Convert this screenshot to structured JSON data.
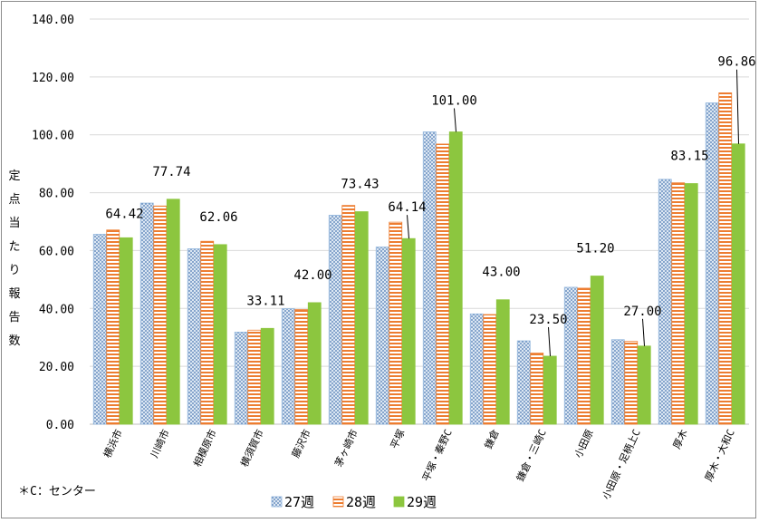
{
  "chart_data": {
    "type": "bar",
    "ylabel": "定点当たり報告数",
    "ylim": [
      0,
      140
    ],
    "yticks": [
      "0.00",
      "20.00",
      "40.00",
      "60.00",
      "80.00",
      "100.00",
      "120.00",
      "140.00"
    ],
    "grid": true,
    "legend": "bottom-center",
    "note": "＊C：センター",
    "categories": [
      "横浜市",
      "川崎市",
      "相模原市",
      "横須賀市",
      "藤沢市",
      "茅ヶ崎市",
      "平塚",
      "平塚・秦野C",
      "鎌倉",
      "鎌倉・三崎C",
      "小田原",
      "小田原・足柄上C",
      "厚木",
      "厚木・大和C"
    ],
    "series": [
      {
        "name": "27週",
        "color": "#8fb4dc",
        "pattern": "dots",
        "values": [
          65.6,
          76.4,
          60.6,
          31.8,
          39.9,
          72.2,
          61.2,
          101.0,
          38.1,
          28.8,
          47.3,
          29.2,
          84.6,
          111.0
        ]
      },
      {
        "name": "28週",
        "color": "#ed7d31",
        "pattern": "hstripes",
        "values": [
          67.1,
          75.4,
          63.2,
          32.5,
          39.6,
          75.6,
          69.8,
          96.8,
          37.9,
          24.6,
          47.0,
          28.6,
          83.4,
          114.5
        ]
      },
      {
        "name": "29週",
        "color": "#8cc63f",
        "pattern": "solid",
        "values": [
          64.42,
          77.74,
          62.06,
          33.11,
          42.0,
          73.43,
          64.14,
          101.0,
          43.0,
          23.5,
          51.2,
          27.0,
          83.15,
          96.86
        ]
      }
    ],
    "data_labels": [
      "64.42",
      "77.74",
      "62.06",
      "33.11",
      "42.00",
      "73.43",
      "64.14",
      "101.00",
      "43.00",
      "23.50",
      "51.20",
      "27.00",
      "83.15",
      "96.86"
    ]
  }
}
